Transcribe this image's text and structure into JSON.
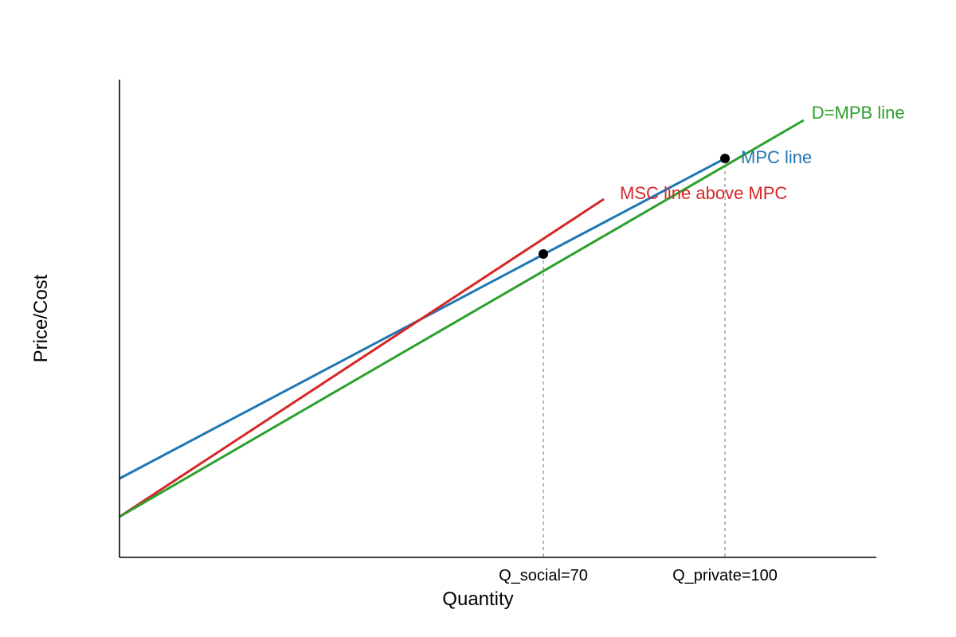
{
  "chart_data": {
    "type": "line",
    "title": "",
    "xlabel": "Quantity",
    "ylabel": "Price/Cost",
    "xlim": [
      0,
      125
    ],
    "ylim": [
      0,
      200
    ],
    "grid": false,
    "x_ticks": [
      {
        "value": 70,
        "label": "Q_social=70"
      },
      {
        "value": 100,
        "label": "Q_private=100"
      }
    ],
    "series": [
      {
        "name": "MPC line",
        "color": "#1f77b4",
        "x": [
          0,
          100
        ],
        "y": [
          33,
          167
        ]
      },
      {
        "name": "MSC line above MPC",
        "color": "#d62728",
        "x": [
          0,
          80
        ],
        "y": [
          17,
          150
        ]
      },
      {
        "name": "D=MPB line",
        "color": "#2ca02c",
        "x": [
          0,
          113
        ],
        "y": [
          17,
          183
        ]
      }
    ],
    "points": [
      {
        "x": 70,
        "y": 127
      },
      {
        "x": 100,
        "y": 167
      }
    ],
    "reference_lines": [
      {
        "x": 70,
        "y_top": 127
      },
      {
        "x": 100,
        "y_top": 167
      }
    ]
  }
}
